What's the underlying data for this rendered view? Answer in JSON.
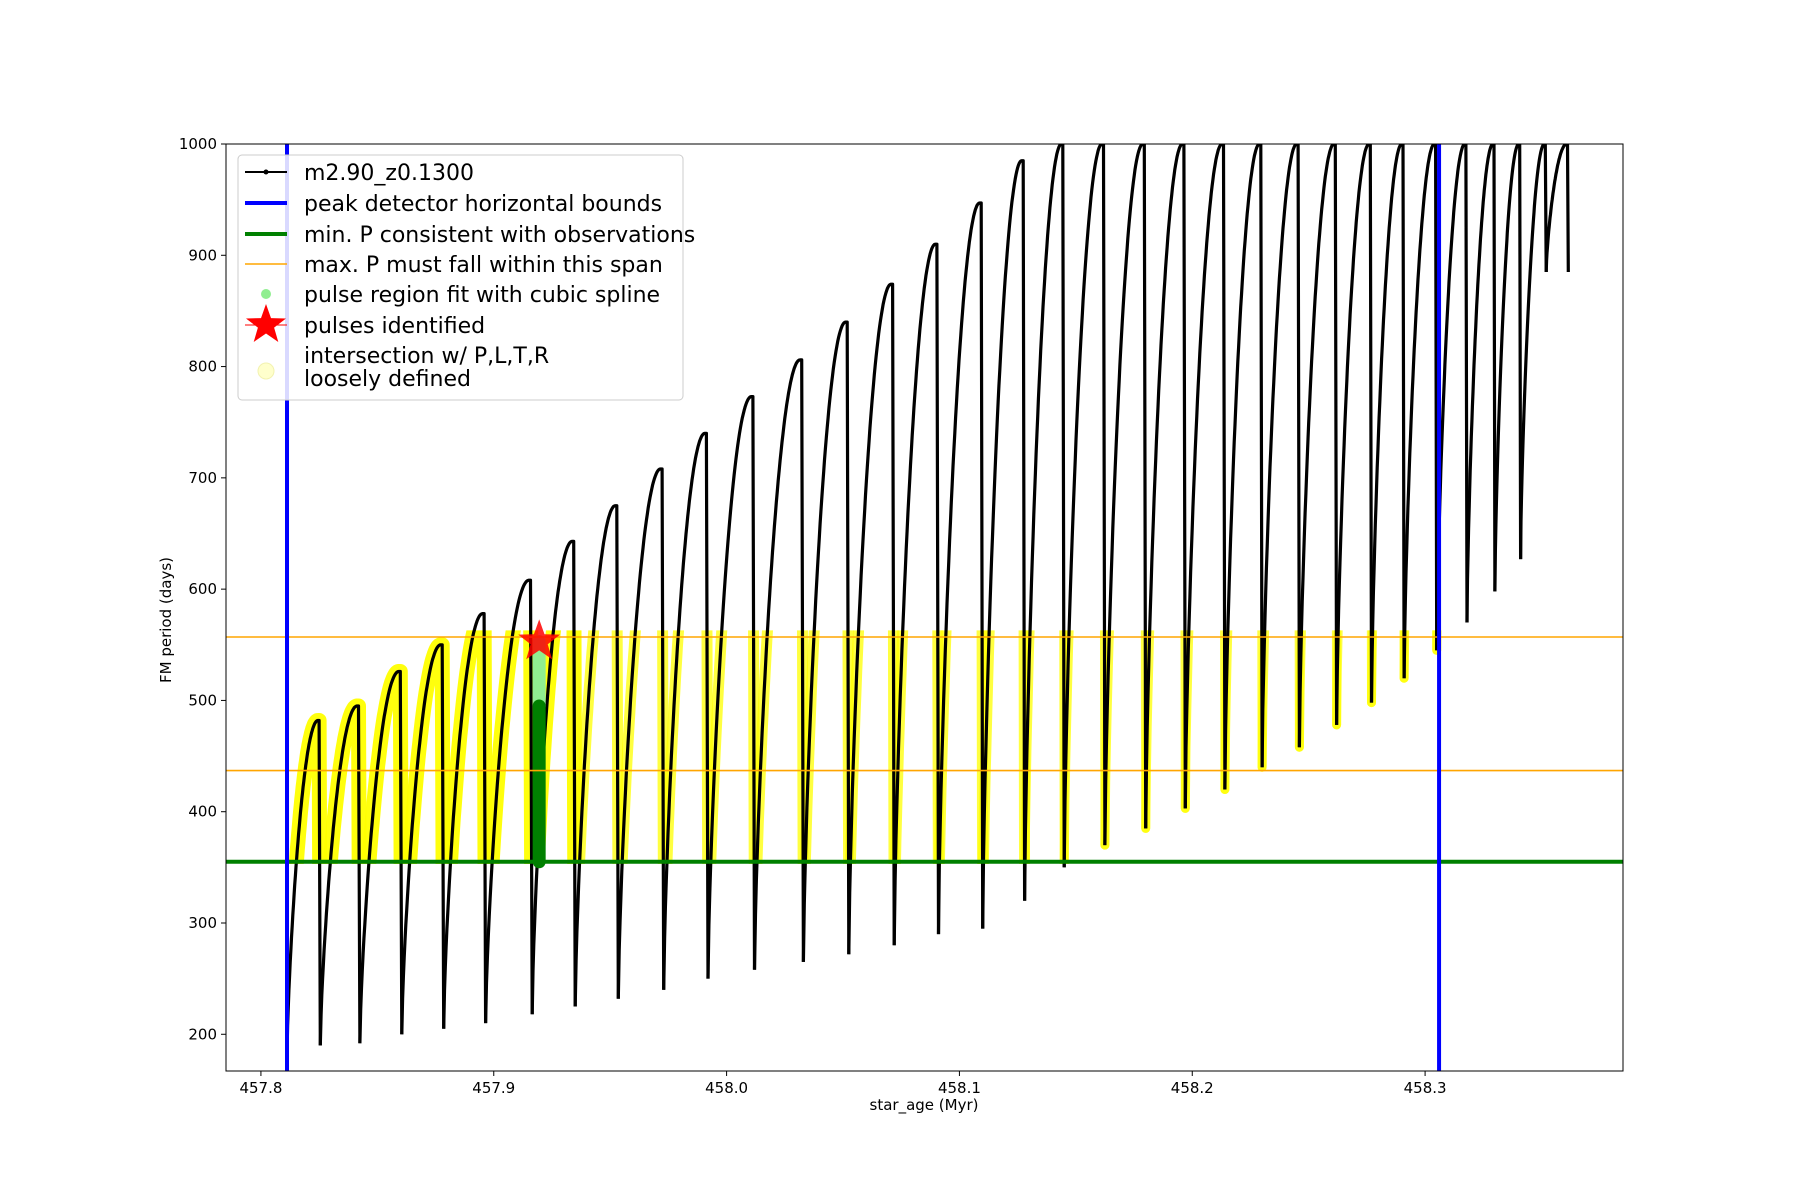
{
  "chart_data": {
    "type": "line",
    "title": "",
    "xlabel": "star_age (Myr)",
    "ylabel": "FM period (days)",
    "xlim": [
      457.785,
      458.385
    ],
    "ylim": [
      167,
      1000
    ],
    "x_ticks": [
      457.8,
      457.9,
      458.0,
      458.1,
      458.2,
      458.3
    ],
    "x_tick_labels": [
      "457.8",
      "457.9",
      "458.0",
      "458.1",
      "458.2",
      "458.3"
    ],
    "y_ticks": [
      200,
      300,
      400,
      500,
      600,
      700,
      800,
      900,
      1000
    ],
    "y_tick_labels": [
      "200",
      "300",
      "400",
      "500",
      "600",
      "700",
      "800",
      "900",
      "1000"
    ],
    "grid": false,
    "legend_placement": "upper-left",
    "colors": {
      "track": "#000000",
      "bounds": "#0000ff",
      "min_period": "#008000",
      "max_span": "#ffa500",
      "spline": "#90ee90",
      "spline_dark": "#008000",
      "pulse": "#ff0000",
      "intersection": "#ffff00"
    },
    "legend": [
      {
        "label": "m2.90_z0.1300",
        "kind": "line-marker"
      },
      {
        "label": "peak detector horizontal bounds",
        "kind": "thick-blue"
      },
      {
        "label": "min. P consistent with observations",
        "kind": "thick-green"
      },
      {
        "label": "max. P must fall within this span",
        "kind": "thin-orange"
      },
      {
        "label": "pulse region fit with cubic spline",
        "kind": "green-dot"
      },
      {
        "label": "pulses identified",
        "kind": "red-star"
      },
      {
        "label": "intersection w/ P,L,T,R\nloosely defined",
        "kind": "yellow-dot"
      }
    ],
    "series": [
      {
        "name": "m2.90_z0.1300",
        "pulses": [
          {
            "start": 457.8112,
            "end": 457.8255,
            "min": 180,
            "peak": 482
          },
          {
            "start": 457.8255,
            "end": 457.8425,
            "min": 190,
            "peak": 495
          },
          {
            "start": 457.8425,
            "end": 457.8605,
            "min": 192,
            "peak": 526
          },
          {
            "start": 457.8605,
            "end": 457.8785,
            "min": 200,
            "peak": 550
          },
          {
            "start": 457.8785,
            "end": 457.8965,
            "min": 205,
            "peak": 578
          },
          {
            "start": 457.8965,
            "end": 457.9165,
            "min": 210,
            "peak": 608
          },
          {
            "start": 457.9165,
            "end": 457.935,
            "min": 218,
            "peak": 643
          },
          {
            "start": 457.935,
            "end": 457.9535,
            "min": 225,
            "peak": 675
          },
          {
            "start": 457.9535,
            "end": 457.973,
            "min": 232,
            "peak": 708
          },
          {
            "start": 457.973,
            "end": 457.992,
            "min": 240,
            "peak": 740
          },
          {
            "start": 457.992,
            "end": 458.012,
            "min": 250,
            "peak": 773
          },
          {
            "start": 458.012,
            "end": 458.033,
            "min": 258,
            "peak": 806
          },
          {
            "start": 458.033,
            "end": 458.0525,
            "min": 265,
            "peak": 840
          },
          {
            "start": 458.0525,
            "end": 458.072,
            "min": 272,
            "peak": 874
          },
          {
            "start": 458.072,
            "end": 458.091,
            "min": 280,
            "peak": 910
          },
          {
            "start": 458.091,
            "end": 458.11,
            "min": 290,
            "peak": 947
          },
          {
            "start": 458.11,
            "end": 458.128,
            "min": 295,
            "peak": 985
          },
          {
            "start": 458.128,
            "end": 458.145,
            "min": 320,
            "peak": 1000
          },
          {
            "start": 458.145,
            "end": 458.1625,
            "min": 350,
            "peak": 1000
          },
          {
            "start": 458.1625,
            "end": 458.18,
            "min": 370,
            "peak": 1000
          },
          {
            "start": 458.18,
            "end": 458.197,
            "min": 385,
            "peak": 1000
          },
          {
            "start": 458.197,
            "end": 458.214,
            "min": 403,
            "peak": 1000
          },
          {
            "start": 458.214,
            "end": 458.23,
            "min": 420,
            "peak": 1000
          },
          {
            "start": 458.23,
            "end": 458.246,
            "min": 440,
            "peak": 1000
          },
          {
            "start": 458.246,
            "end": 458.262,
            "min": 458,
            "peak": 1000
          },
          {
            "start": 458.262,
            "end": 458.277,
            "min": 478,
            "peak": 1000
          },
          {
            "start": 458.277,
            "end": 458.291,
            "min": 498,
            "peak": 1000
          },
          {
            "start": 458.291,
            "end": 458.305,
            "min": 520,
            "peak": 1000
          },
          {
            "start": 458.305,
            "end": 458.318,
            "min": 545,
            "peak": 1000
          },
          {
            "start": 458.318,
            "end": 458.33,
            "min": 570,
            "peak": 1000
          },
          {
            "start": 458.33,
            "end": 458.341,
            "min": 598,
            "peak": 1000
          },
          {
            "start": 458.341,
            "end": 458.352,
            "min": 627,
            "peak": 1000
          },
          {
            "start": 458.352,
            "end": 458.3615,
            "min": 885,
            "peak": 1000
          }
        ]
      }
    ],
    "peak_detector_bounds_x": [
      457.8112,
      458.306
    ],
    "min_period_y": 355,
    "max_period_span_y": [
      437,
      557
    ],
    "pulses_identified": [
      {
        "x": 457.9195,
        "y": 553
      }
    ],
    "spline_region": {
      "x": 457.9195,
      "y_range": [
        355,
        553
      ],
      "dark_y_max": 495
    }
  }
}
